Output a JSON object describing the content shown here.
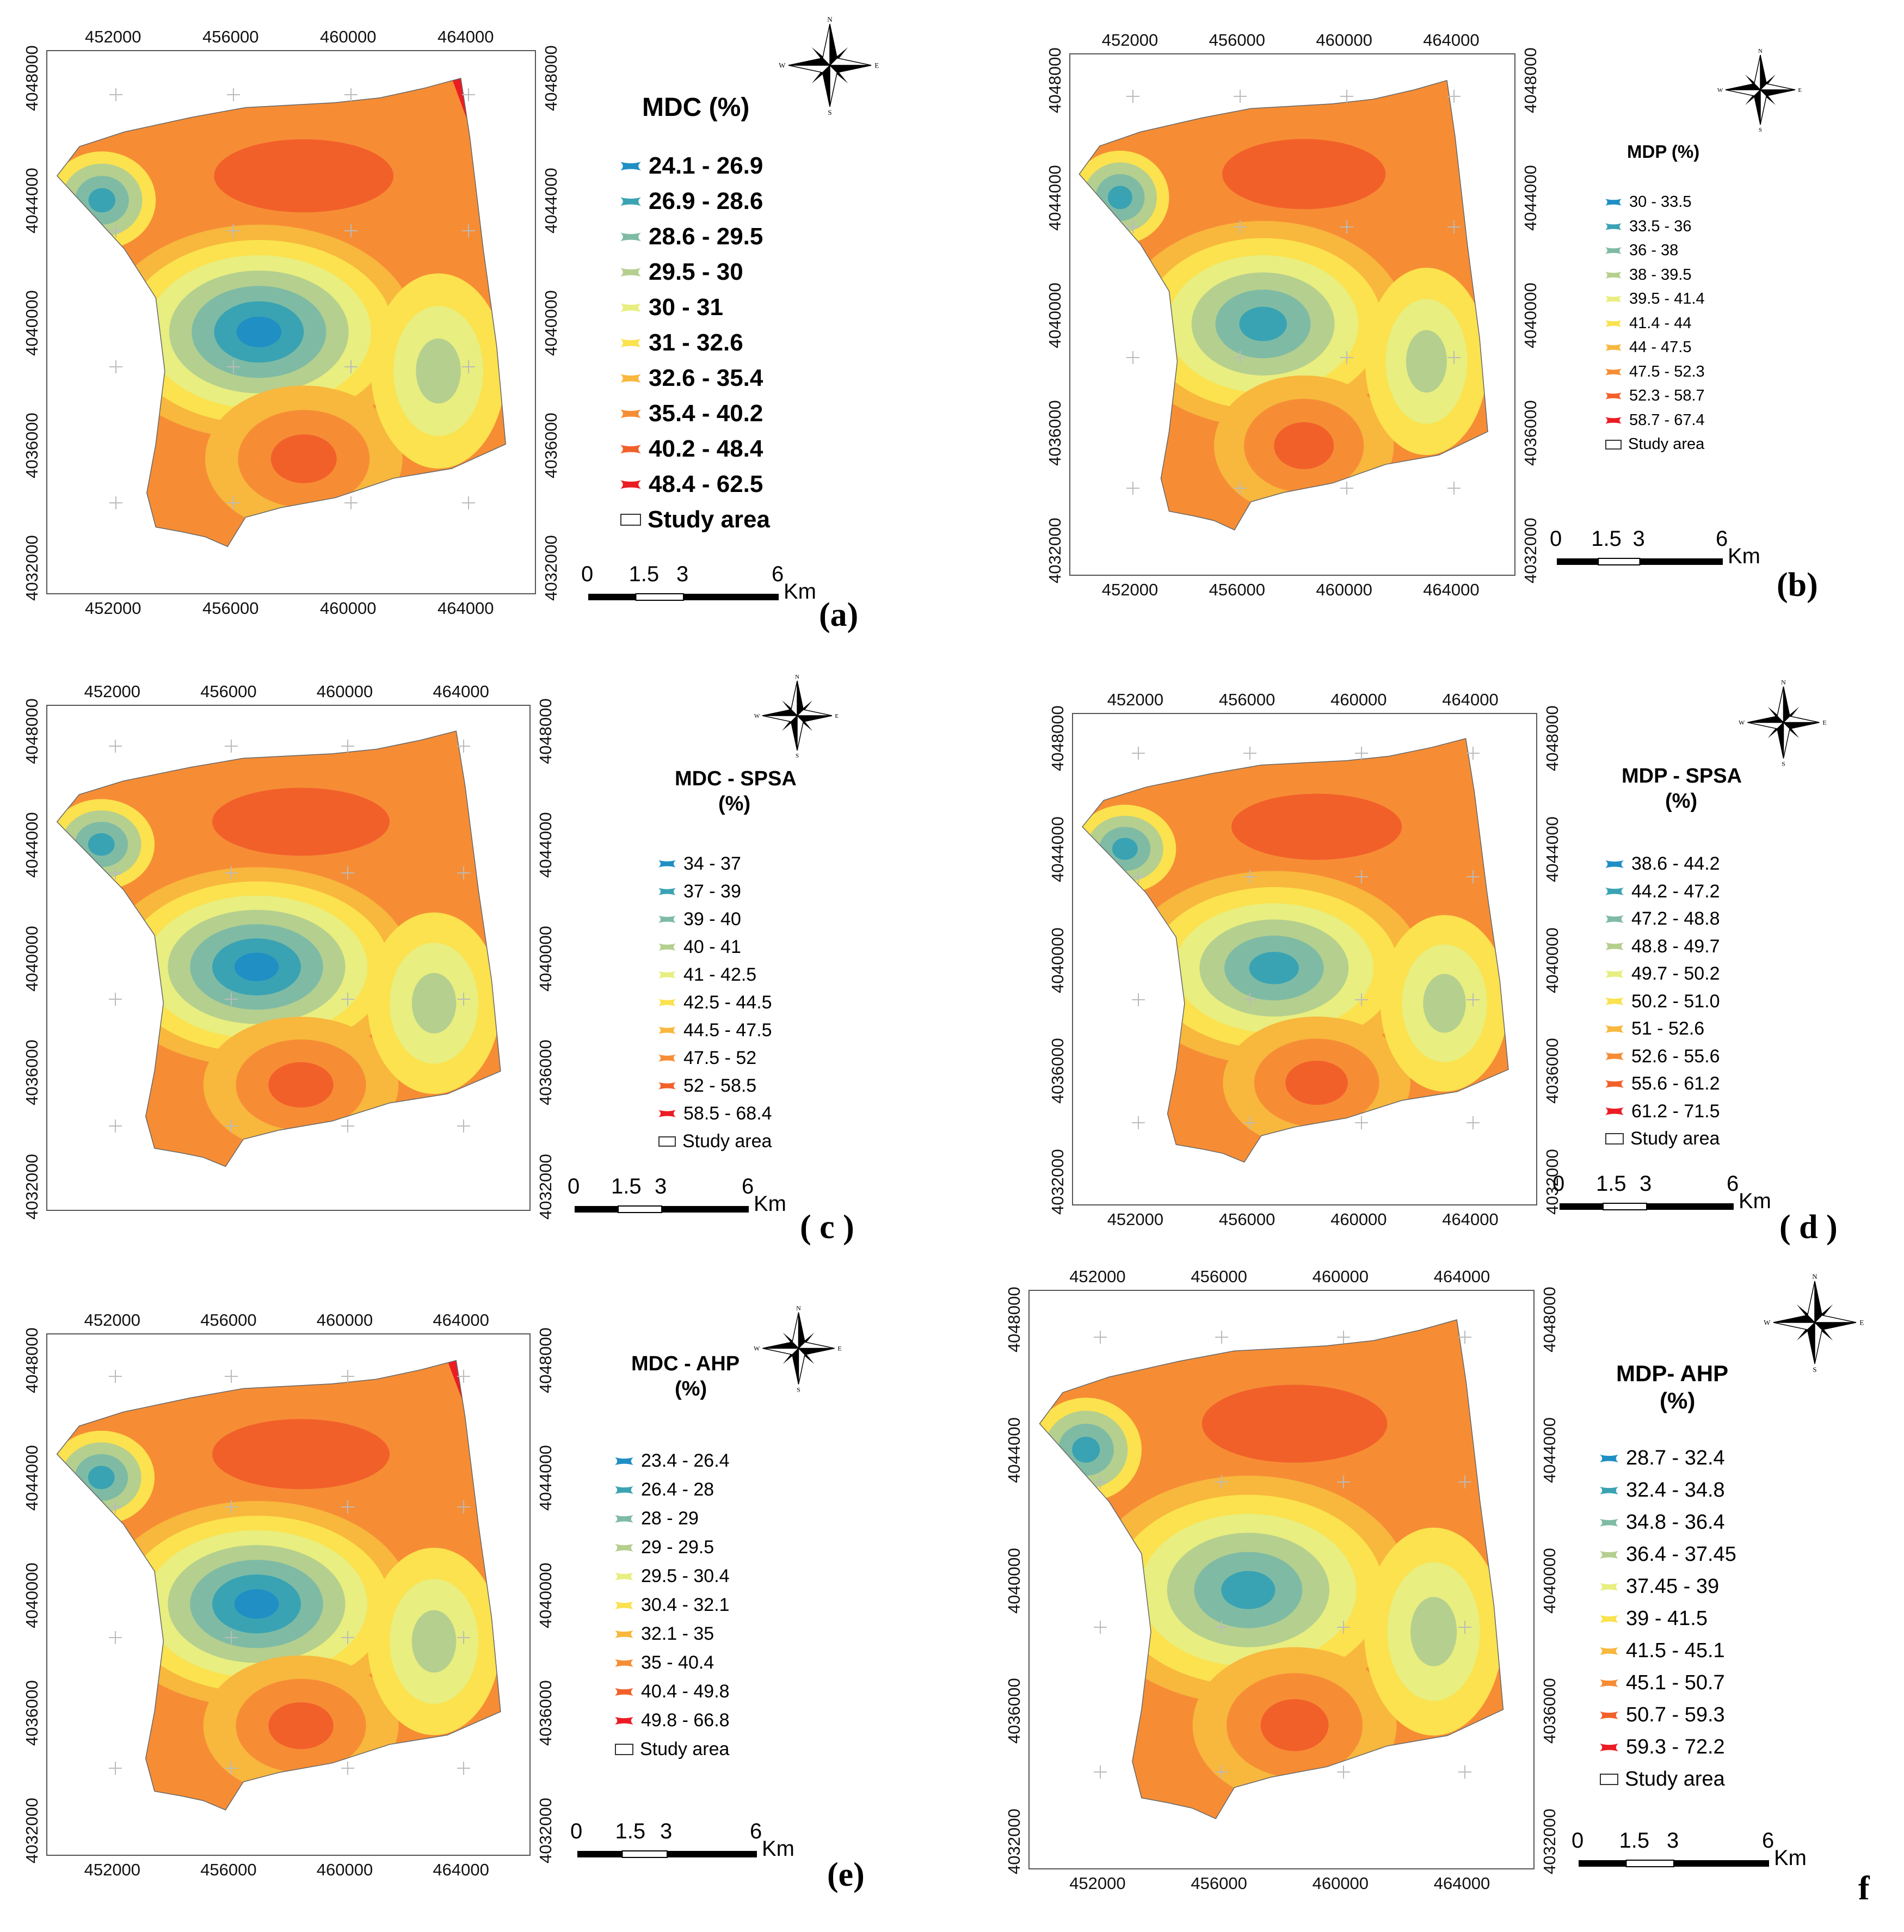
{
  "colors": {
    "c1": "#1f8fc4",
    "c2": "#3aa3b3",
    "c3": "#7fbba4",
    "c4": "#b5cf8f",
    "c5": "#e8ee7f",
    "c6": "#fbe24e",
    "c7": "#f8b73d",
    "c8": "#f68d35",
    "c9": "#f2602a",
    "c10": "#ec1c24"
  },
  "x_ticks": [
    "452000",
    "456000",
    "460000",
    "464000"
  ],
  "y_ticks": [
    "4048000",
    "4044000",
    "4040000",
    "4036000",
    "4032000"
  ],
  "compass": {
    "n": "N",
    "s": "S",
    "e": "E",
    "w": "W"
  },
  "scale": {
    "t0": "0",
    "t1": "1.5",
    "t2": "3",
    "t3": "6",
    "unit": "Km"
  },
  "panels": [
    {
      "title": "MDC (%)",
      "label": "(a)",
      "classes": [
        "24.1 - 26.9",
        "26.9 - 28.6",
        "28.6 - 29.5",
        "29.5 - 30",
        "30 - 31",
        "31 - 32.6",
        "32.6 - 35.4",
        "35.4 - 40.2",
        "40.2 - 48.4",
        "48.4 - 62.5"
      ],
      "study": "Study area"
    },
    {
      "title": "MDP (%)",
      "label": "(b)",
      "classes": [
        "30 - 33.5",
        "33.5 - 36",
        "36 - 38",
        "38 - 39.5",
        "39.5 - 41.4",
        "41.4 - 44",
        "44 - 47.5",
        "47.5 - 52.3",
        "52.3 - 58.7",
        "58.7 - 67.4"
      ],
      "study": "Study area"
    },
    {
      "title": "MDC - SPSA",
      "title2": "(%)",
      "label": "( c )",
      "classes": [
        "34 - 37",
        "37 - 39",
        "39 - 40",
        "40 - 41",
        "41 - 42.5",
        "42.5 - 44.5",
        "44.5 - 47.5",
        "47.5 - 52",
        "52 - 58.5",
        "58.5 - 68.4"
      ],
      "study": "Study area"
    },
    {
      "title": "MDP - SPSA",
      "title2": "(%)",
      "label": "( d )",
      "classes": [
        "38.6 - 44.2",
        "44.2 - 47.2",
        "47.2 - 48.8",
        "48.8 - 49.7",
        "49.7 - 50.2",
        "50.2 - 51.0",
        "51 - 52.6",
        "52.6 - 55.6",
        "55.6 - 61.2",
        "61.2 - 71.5"
      ],
      "study": "Study area"
    },
    {
      "title": "MDC - AHP",
      "title2": "(%)",
      "label": "(e)",
      "classes": [
        "23.4 - 26.4",
        "26.4 - 28",
        "28 - 29",
        "29 - 29.5",
        "29.5 - 30.4",
        "30.4 - 32.1",
        "32.1 - 35",
        "35 - 40.4",
        "40.4 - 49.8",
        "49.8 - 66.8"
      ],
      "study": "Study area"
    },
    {
      "title": "MDP- AHP",
      "title2": "(%)",
      "label": "f",
      "classes": [
        "28.7 - 32.4",
        "32.4 - 34.8",
        "34.8 - 36.4",
        "36.4 - 37.45",
        "37.45 - 39",
        "39 - 41.5",
        "41.5 - 45.1",
        "45.1 - 50.7",
        "50.7 - 59.3",
        "59.3 - 72.2"
      ],
      "study": "Study area"
    }
  ]
}
